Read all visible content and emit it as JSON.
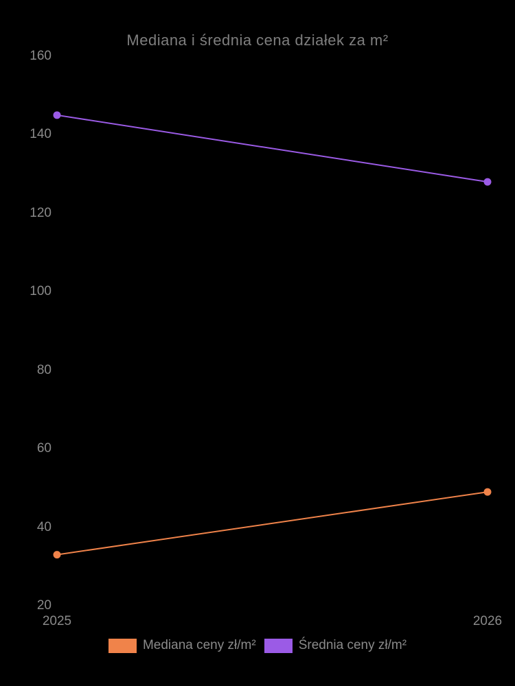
{
  "chart_data": {
    "type": "line",
    "title": "Mediana i średnia cena działek za m²",
    "categories": [
      "2025",
      "2026"
    ],
    "series": [
      {
        "name": "Mediana ceny zł/m²",
        "color": "#f0834a",
        "values": [
          33,
          49
        ]
      },
      {
        "name": "Średnia ceny zł/m²",
        "color": "#9b5be6",
        "values": [
          145,
          128
        ]
      }
    ],
    "xlabel": "",
    "ylabel": "",
    "ylim": [
      20,
      160
    ],
    "yticks": [
      160,
      140,
      120,
      100,
      80,
      60,
      40,
      20
    ],
    "grid": false,
    "legend_position": "bottom",
    "background_color": "#000000",
    "text_color": "#8a8a8a"
  }
}
